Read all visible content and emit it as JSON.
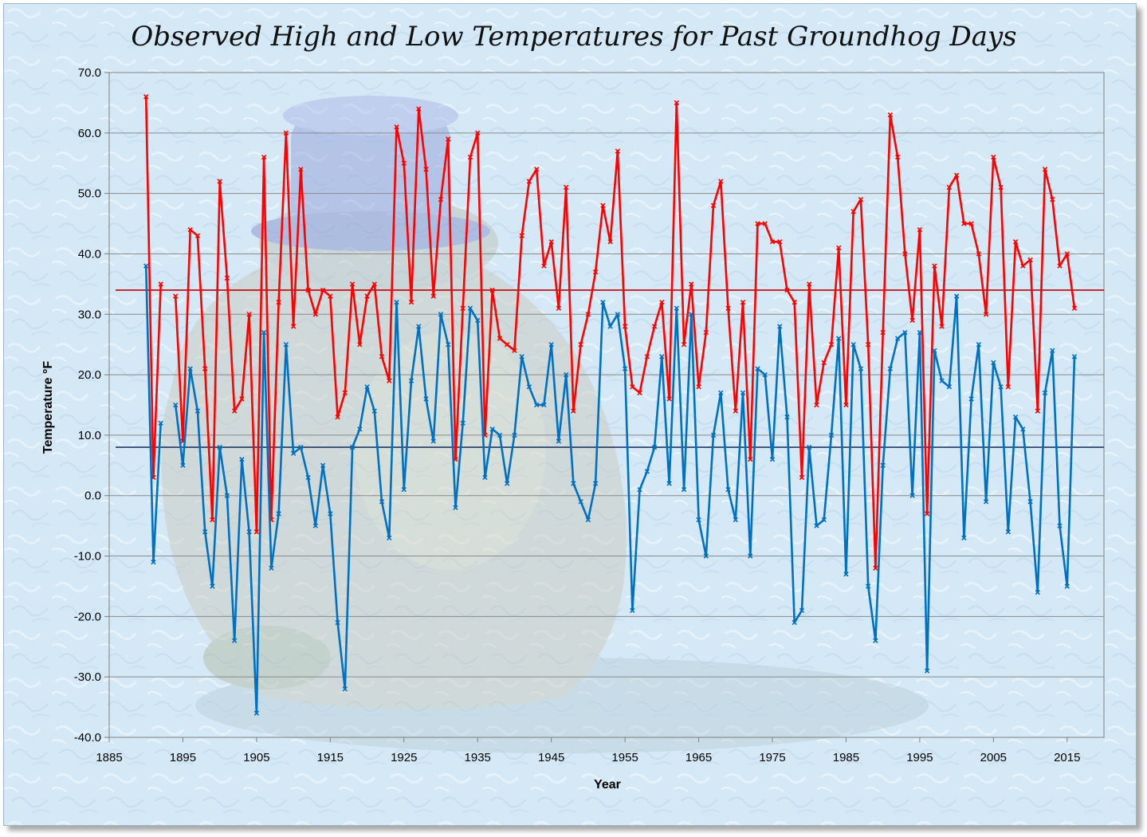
{
  "chart_data": {
    "type": "line",
    "title": "Observed High and Low Temperatures for Past Groundhog Days",
    "xlabel": "Year",
    "ylabel": "Temperature °F",
    "xlim": [
      1885,
      2020
    ],
    "ylim": [
      -40,
      70
    ],
    "xticks": [
      "1885",
      "1895",
      "1905",
      "1915",
      "1925",
      "1935",
      "1945",
      "1955",
      "1965",
      "1975",
      "1985",
      "1995",
      "2005",
      "2015"
    ],
    "yticks": [
      "70.0",
      "60.0",
      "50.0",
      "40.0",
      "30.0",
      "20.0",
      "10.0",
      "0.0",
      "-10.0",
      "-20.0",
      "-30.0",
      "-40.0"
    ],
    "grid": true,
    "legend": "none",
    "reference_lines": [
      {
        "value": 34,
        "color": "#c00000"
      },
      {
        "value": 8,
        "color": "#1f3864"
      }
    ],
    "series": [
      {
        "color": "#ff0000",
        "points": [
          [
            1890,
            66
          ],
          [
            1891,
            3
          ],
          [
            1892,
            35
          ],
          [
            1894,
            33
          ],
          [
            1895,
            9
          ],
          [
            1896,
            44
          ],
          [
            1897,
            43
          ],
          [
            1898,
            21
          ],
          [
            1899,
            -4
          ],
          [
            1900,
            52
          ],
          [
            1901,
            36
          ],
          [
            1902,
            14
          ],
          [
            1903,
            16
          ],
          [
            1904,
            30
          ],
          [
            1905,
            -6
          ],
          [
            1906,
            56
          ],
          [
            1907,
            -4
          ],
          [
            1908,
            32
          ],
          [
            1909,
            60
          ],
          [
            1910,
            28
          ],
          [
            1911,
            54
          ],
          [
            1912,
            34
          ],
          [
            1913,
            30
          ],
          [
            1914,
            34
          ],
          [
            1915,
            33
          ],
          [
            1916,
            13
          ],
          [
            1917,
            17
          ],
          [
            1918,
            35
          ],
          [
            1919,
            25
          ],
          [
            1920,
            33
          ],
          [
            1921,
            35
          ],
          [
            1922,
            23
          ],
          [
            1923,
            19
          ],
          [
            1924,
            61
          ],
          [
            1925,
            55
          ],
          [
            1926,
            32
          ],
          [
            1927,
            64
          ],
          [
            1928,
            54
          ],
          [
            1929,
            33
          ],
          [
            1930,
            49
          ],
          [
            1931,
            59
          ],
          [
            1932,
            6
          ],
          [
            1933,
            31
          ],
          [
            1934,
            56
          ],
          [
            1935,
            60
          ],
          [
            1936,
            10
          ],
          [
            1937,
            34
          ],
          [
            1938,
            26
          ],
          [
            1939,
            25
          ],
          [
            1940,
            24
          ],
          [
            1941,
            43
          ],
          [
            1942,
            52
          ],
          [
            1943,
            54
          ],
          [
            1944,
            38
          ],
          [
            1945,
            42
          ],
          [
            1946,
            31
          ],
          [
            1947,
            51
          ],
          [
            1948,
            14
          ],
          [
            1949,
            25
          ],
          [
            1950,
            30
          ],
          [
            1951,
            37
          ],
          [
            1952,
            48
          ],
          [
            1953,
            42
          ],
          [
            1954,
            57
          ],
          [
            1955,
            28
          ],
          [
            1956,
            18
          ],
          [
            1957,
            17
          ],
          [
            1958,
            23
          ],
          [
            1959,
            28
          ],
          [
            1960,
            32
          ],
          [
            1961,
            16
          ],
          [
            1962,
            65
          ],
          [
            1963,
            25
          ],
          [
            1964,
            35
          ],
          [
            1965,
            18
          ],
          [
            1966,
            27
          ],
          [
            1967,
            48
          ],
          [
            1968,
            52
          ],
          [
            1969,
            31
          ],
          [
            1970,
            14
          ],
          [
            1971,
            32
          ],
          [
            1972,
            6
          ],
          [
            1973,
            45
          ],
          [
            1974,
            45
          ],
          [
            1975,
            42
          ],
          [
            1976,
            42
          ],
          [
            1977,
            34
          ],
          [
            1978,
            32
          ],
          [
            1979,
            3
          ],
          [
            1980,
            35
          ],
          [
            1981,
            15
          ],
          [
            1982,
            22
          ],
          [
            1983,
            25
          ],
          [
            1984,
            41
          ],
          [
            1985,
            15
          ],
          [
            1986,
            47
          ],
          [
            1987,
            49
          ],
          [
            1988,
            25
          ],
          [
            1989,
            -12
          ],
          [
            1990,
            27
          ],
          [
            1991,
            63
          ],
          [
            1992,
            56
          ],
          [
            1993,
            40
          ],
          [
            1994,
            29
          ],
          [
            1995,
            44
          ],
          [
            1996,
            -3
          ],
          [
            1997,
            38
          ],
          [
            1998,
            28
          ],
          [
            1999,
            51
          ],
          [
            2000,
            53
          ],
          [
            2001,
            45
          ],
          [
            2002,
            45
          ],
          [
            2003,
            40
          ],
          [
            2004,
            30
          ],
          [
            2005,
            56
          ],
          [
            2006,
            51
          ],
          [
            2007,
            18
          ],
          [
            2008,
            42
          ],
          [
            2009,
            38
          ],
          [
            2010,
            39
          ],
          [
            2011,
            14
          ],
          [
            2012,
            54
          ],
          [
            2013,
            49
          ],
          [
            2014,
            38
          ],
          [
            2015,
            40
          ],
          [
            2016,
            31
          ]
        ]
      },
      {
        "color": "#0070c0",
        "points": [
          [
            1890,
            38
          ],
          [
            1891,
            -11
          ],
          [
            1892,
            12
          ],
          [
            1894,
            15
          ],
          [
            1895,
            5
          ],
          [
            1896,
            21
          ],
          [
            1897,
            14
          ],
          [
            1898,
            -6
          ],
          [
            1899,
            -15
          ],
          [
            1900,
            8
          ],
          [
            1901,
            0
          ],
          [
            1902,
            -24
          ],
          [
            1903,
            6
          ],
          [
            1904,
            -6
          ],
          [
            1905,
            -36
          ],
          [
            1906,
            27
          ],
          [
            1907,
            -12
          ],
          [
            1908,
            -3
          ],
          [
            1909,
            25
          ],
          [
            1910,
            7
          ],
          [
            1911,
            8
          ],
          [
            1912,
            3
          ],
          [
            1913,
            -5
          ],
          [
            1914,
            5
          ],
          [
            1915,
            -3
          ],
          [
            1916,
            -21
          ],
          [
            1917,
            -32
          ],
          [
            1918,
            8
          ],
          [
            1919,
            11
          ],
          [
            1920,
            18
          ],
          [
            1921,
            14
          ],
          [
            1922,
            -1
          ],
          [
            1923,
            -7
          ],
          [
            1924,
            32
          ],
          [
            1925,
            1
          ],
          [
            1926,
            19
          ],
          [
            1927,
            28
          ],
          [
            1928,
            16
          ],
          [
            1929,
            9
          ],
          [
            1930,
            30
          ],
          [
            1931,
            25
          ],
          [
            1932,
            -2
          ],
          [
            1933,
            12
          ],
          [
            1934,
            31
          ],
          [
            1935,
            29
          ],
          [
            1936,
            3
          ],
          [
            1937,
            11
          ],
          [
            1938,
            10
          ],
          [
            1939,
            2
          ],
          [
            1940,
            10
          ],
          [
            1941,
            23
          ],
          [
            1942,
            18
          ],
          [
            1943,
            15
          ],
          [
            1944,
            15
          ],
          [
            1945,
            25
          ],
          [
            1946,
            9
          ],
          [
            1947,
            20
          ],
          [
            1948,
            2
          ],
          [
            1949,
            -1
          ],
          [
            1950,
            -4
          ],
          [
            1951,
            2
          ],
          [
            1952,
            32
          ],
          [
            1953,
            28
          ],
          [
            1954,
            30
          ],
          [
            1955,
            21
          ],
          [
            1956,
            -19
          ],
          [
            1957,
            1
          ],
          [
            1958,
            4
          ],
          [
            1959,
            8
          ],
          [
            1960,
            23
          ],
          [
            1961,
            2
          ],
          [
            1962,
            31
          ],
          [
            1963,
            1
          ],
          [
            1964,
            30
          ],
          [
            1965,
            -4
          ],
          [
            1966,
            -10
          ],
          [
            1967,
            10
          ],
          [
            1968,
            17
          ],
          [
            1969,
            1
          ],
          [
            1970,
            -4
          ],
          [
            1971,
            17
          ],
          [
            1972,
            -10
          ],
          [
            1973,
            21
          ],
          [
            1974,
            20
          ],
          [
            1975,
            6
          ],
          [
            1976,
            28
          ],
          [
            1977,
            13
          ],
          [
            1978,
            -21
          ],
          [
            1979,
            -19
          ],
          [
            1980,
            8
          ],
          [
            1981,
            -5
          ],
          [
            1982,
            -4
          ],
          [
            1983,
            10
          ],
          [
            1984,
            26
          ],
          [
            1985,
            -13
          ],
          [
            1986,
            25
          ],
          [
            1987,
            21
          ],
          [
            1988,
            -15
          ],
          [
            1989,
            -24
          ],
          [
            1990,
            5
          ],
          [
            1991,
            21
          ],
          [
            1992,
            26
          ],
          [
            1993,
            27
          ],
          [
            1994,
            0
          ],
          [
            1995,
            27
          ],
          [
            1996,
            -29
          ],
          [
            1997,
            24
          ],
          [
            1998,
            19
          ],
          [
            1999,
            18
          ],
          [
            2000,
            33
          ],
          [
            2001,
            -7
          ],
          [
            2002,
            16
          ],
          [
            2003,
            25
          ],
          [
            2004,
            -1
          ],
          [
            2005,
            22
          ],
          [
            2006,
            18
          ],
          [
            2007,
            -6
          ],
          [
            2008,
            13
          ],
          [
            2009,
            11
          ],
          [
            2010,
            -1
          ],
          [
            2011,
            -16
          ],
          [
            2012,
            17
          ],
          [
            2013,
            24
          ],
          [
            2014,
            -5
          ],
          [
            2015,
            -15
          ],
          [
            2016,
            23
          ]
        ]
      }
    ]
  }
}
